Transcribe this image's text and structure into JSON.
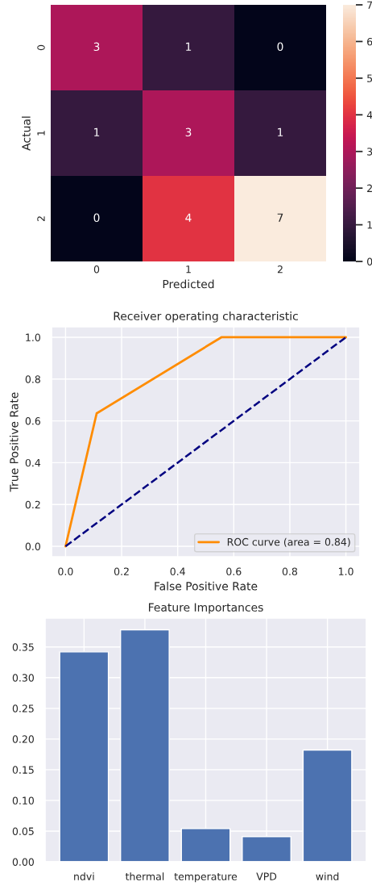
{
  "chart_data": [
    {
      "type": "heatmap",
      "xlabel": "Predicted",
      "ylabel": "Actual",
      "categories": [
        "0",
        "1",
        "2"
      ],
      "y_categories": [
        "0",
        "1",
        "2"
      ],
      "cells": [
        [
          3,
          1,
          0
        ],
        [
          1,
          3,
          1
        ],
        [
          0,
          4,
          7
        ]
      ],
      "data_labels": true,
      "clim": [
        0,
        7
      ],
      "cticks": [
        0,
        1,
        2,
        3,
        4,
        5,
        6,
        7
      ],
      "grid": false
    },
    {
      "type": "line",
      "title": "Receiver operating characteristic",
      "xlabel": "False Positive Rate",
      "ylabel": "True Positive Rate",
      "series": [
        {
          "name": "ROC curve (area = 0.84)",
          "color": "#ff8c00",
          "x": [
            0,
            0.111,
            0.556,
            1
          ],
          "values": [
            0,
            0.636,
            1,
            1
          ],
          "line_style": "solid"
        },
        {
          "color": "#000080",
          "x": [
            0,
            1
          ],
          "values": [
            0,
            1
          ],
          "line_style": "dashed"
        }
      ],
      "xlim": [
        -0.05,
        1.05
      ],
      "ylim": [
        -0.05,
        1.05
      ],
      "xticks": [
        {
          "value": 0,
          "label": "0.0"
        },
        0.2,
        0.4,
        0.6,
        0.8,
        {
          "value": 1,
          "label": "1.0"
        }
      ],
      "yticks": [
        {
          "value": 0,
          "label": "0.0"
        },
        0.2,
        0.4,
        0.6,
        0.8,
        {
          "value": 1,
          "label": "1.0"
        }
      ],
      "grid": true,
      "legend": "bottom right"
    },
    {
      "type": "bar",
      "title": "Feature Importances",
      "categories": [
        "ndvi",
        "thermal",
        "temperature",
        "VPD",
        "wind"
      ],
      "values": [
        0.342,
        0.378,
        0.054,
        0.041,
        0.182
      ],
      "color": "#4c72b0",
      "ylim": [
        0,
        0.397
      ],
      "yticks": [
        {
          "value": 0,
          "label": "0.00"
        },
        0.05,
        {
          "value": 0.1,
          "label": "0.10"
        },
        0.15,
        {
          "value": 0.2,
          "label": "0.20"
        },
        0.25,
        {
          "value": 0.3,
          "label": "0.30"
        },
        0.35
      ],
      "grid": true
    }
  ]
}
